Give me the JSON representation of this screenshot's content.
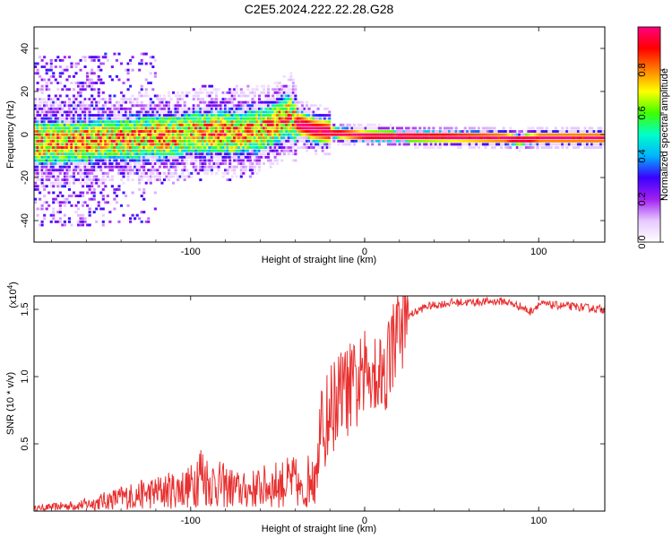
{
  "figure_title": "C2E5.2024.222.22.28.G28",
  "chart_data": [
    {
      "type": "heatmap",
      "xlabel": "Height of straight line (km)",
      "ylabel": "Frequency (Hz)",
      "xlim": [
        -190,
        138
      ],
      "ylim": [
        -50,
        50
      ],
      "x_ticks": [
        -100,
        0,
        100
      ],
      "y_ticks": [
        -40,
        -20,
        0,
        20,
        40
      ],
      "colorbar": {
        "label": "Normalized spectral amplitude",
        "range": [
          0,
          1
        ],
        "ticks": [
          0.0,
          0.2,
          0.4,
          0.6,
          0.8
        ],
        "colormap": [
          "#ffffff",
          "#e6c8ff",
          "#a020f0",
          "#3a00ff",
          "#00b4ff",
          "#00ffc8",
          "#40ff00",
          "#ffff00",
          "#ff8000",
          "#ff0000",
          "#ff0080"
        ]
      },
      "ridge": [
        {
          "x": -170,
          "y": -4
        },
        {
          "x": -150,
          "y": -3
        },
        {
          "x": -130,
          "y": -2
        },
        {
          "x": -110,
          "y": -1
        },
        {
          "x": -90,
          "y": 1
        },
        {
          "x": -75,
          "y": 0
        },
        {
          "x": -60,
          "y": 2
        },
        {
          "x": -50,
          "y": 5
        },
        {
          "x": -45,
          "y": 9
        },
        {
          "x": -40,
          "y": 5
        },
        {
          "x": -30,
          "y": 2
        },
        {
          "x": -15,
          "y": 0
        },
        {
          "x": 0,
          "y": -1
        },
        {
          "x": 40,
          "y": -1.5
        },
        {
          "x": 80,
          "y": -2
        },
        {
          "x": 88,
          "y": -3
        },
        {
          "x": 100,
          "y": -2
        },
        {
          "x": 138,
          "y": -2
        }
      ]
    },
    {
      "type": "line",
      "xlabel": "Height of straight line (km)",
      "ylabel": "SNR (10 * v/v)",
      "y_multiplier": "(x10",
      "y_multiplier_exp": "4",
      "y_multiplier_close": ")",
      "xlim": [
        -190,
        138
      ],
      "ylim": [
        0,
        1.6
      ],
      "x_ticks": [
        -100,
        0,
        100
      ],
      "y_ticks": [
        0.5,
        1.0,
        1.5
      ],
      "y_tick_labels": [
        "0.5",
        "1.0",
        "1.5"
      ],
      "series": [
        {
          "color": "#e83030",
          "trend": [
            {
              "x": -190,
              "y": 0.02
            },
            {
              "x": -160,
              "y": 0.05
            },
            {
              "x": -140,
              "y": 0.1
            },
            {
              "x": -120,
              "y": 0.14
            },
            {
              "x": -100,
              "y": 0.18
            },
            {
              "x": -95,
              "y": 0.3
            },
            {
              "x": -90,
              "y": 0.22
            },
            {
              "x": -70,
              "y": 0.15
            },
            {
              "x": -50,
              "y": 0.2
            },
            {
              "x": -40,
              "y": 0.22
            },
            {
              "x": -35,
              "y": 0.1
            },
            {
              "x": -30,
              "y": 0.35
            },
            {
              "x": -25,
              "y": 0.55
            },
            {
              "x": -20,
              "y": 0.75
            },
            {
              "x": -15,
              "y": 0.85
            },
            {
              "x": -10,
              "y": 0.9
            },
            {
              "x": -5,
              "y": 0.92
            },
            {
              "x": 0,
              "y": 1.0
            },
            {
              "x": 5,
              "y": 1.1
            },
            {
              "x": 10,
              "y": 1.0
            },
            {
              "x": 15,
              "y": 1.2
            },
            {
              "x": 20,
              "y": 1.35
            },
            {
              "x": 25,
              "y": 1.45
            },
            {
              "x": 35,
              "y": 1.52
            },
            {
              "x": 50,
              "y": 1.55
            },
            {
              "x": 80,
              "y": 1.56
            },
            {
              "x": 90,
              "y": 1.52
            },
            {
              "x": 95,
              "y": 1.48
            },
            {
              "x": 100,
              "y": 1.54
            },
            {
              "x": 120,
              "y": 1.52
            },
            {
              "x": 138,
              "y": 1.5
            }
          ]
        }
      ]
    }
  ]
}
